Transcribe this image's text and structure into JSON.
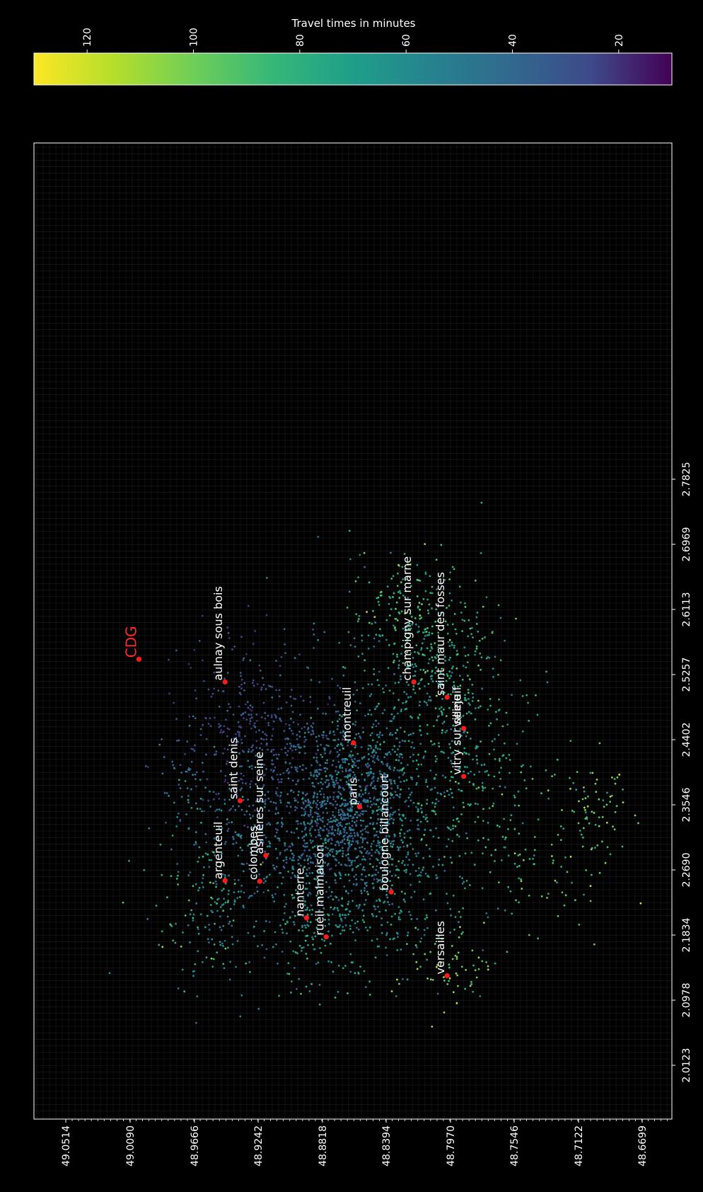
{
  "chart_data": {
    "type": "scatter",
    "background_color": "#000000",
    "foreground_color": "#ffffff",
    "grid": true,
    "orientation": "rotated-90-clockwise",
    "colorbar": {
      "label": "Travel times in minutes",
      "colormap": "viridis",
      "range": [
        10,
        130
      ],
      "ticks": [
        "120",
        "100",
        "80",
        "60",
        "40",
        "20"
      ],
      "tick_values": [
        120,
        100,
        80,
        60,
        40,
        20
      ],
      "reversed": true,
      "position": "top"
    },
    "x_axis": {
      "label": "",
      "ticks": [
        "49.0514",
        "49.0090",
        "48.9666",
        "48.9242",
        "48.8818",
        "48.8394",
        "48.7970",
        "48.7546",
        "48.7122",
        "48.6699"
      ],
      "range": [
        49.0514,
        48.6699
      ],
      "quantity": "latitude"
    },
    "y_axis": {
      "label": "",
      "ticks": [
        "2.0123",
        "2.0978",
        "2.1834",
        "2.2690",
        "2.3546",
        "2.4402",
        "2.5257",
        "2.6113",
        "2.6969",
        "2.7825"
      ],
      "range": [
        1.95,
        2.8
      ],
      "quantity": "longitude"
    },
    "places": [
      {
        "name": "CDG",
        "lat": 49.003,
        "lon": 2.546,
        "highlight": true
      },
      {
        "name": "aulnay sous bois",
        "lat": 48.946,
        "lon": 2.516
      },
      {
        "name": "saint denis",
        "lat": 48.936,
        "lon": 2.36
      },
      {
        "name": "argenteuil",
        "lat": 48.946,
        "lon": 2.255
      },
      {
        "name": "colombes",
        "lat": 48.923,
        "lon": 2.254
      },
      {
        "name": "asnieres sur seine",
        "lat": 48.919,
        "lon": 2.288
      },
      {
        "name": "nanterre",
        "lat": 48.892,
        "lon": 2.206
      },
      {
        "name": "rueil malmaison",
        "lat": 48.879,
        "lon": 2.181
      },
      {
        "name": "montreuil",
        "lat": 48.861,
        "lon": 2.436
      },
      {
        "name": "paris",
        "lat": 48.857,
        "lon": 2.352
      },
      {
        "name": "boulogne billancourt",
        "lat": 48.836,
        "lon": 2.24
      },
      {
        "name": "champigny sur marne",
        "lat": 48.821,
        "lon": 2.516
      },
      {
        "name": "saint maur des fosses",
        "lat": 48.799,
        "lon": 2.496
      },
      {
        "name": "vitry sur seine",
        "lat": 48.788,
        "lon": 2.392
      },
      {
        "name": "villejuif",
        "lat": 48.788,
        "lon": 2.455
      },
      {
        "name": "versailles",
        "lat": 48.799,
        "lon": 2.13
      }
    ],
    "point_clusters": [
      {
        "lat": 48.865,
        "lon": 2.345,
        "spread_lat": 0.022,
        "spread_lon": 0.055,
        "count": 900,
        "time": 52,
        "spread_time": 8
      },
      {
        "lat": 48.905,
        "lon": 2.4,
        "spread_lat": 0.03,
        "spread_lon": 0.09,
        "count": 350,
        "time": 45,
        "spread_time": 8
      },
      {
        "lat": 48.935,
        "lon": 2.45,
        "spread_lat": 0.02,
        "spread_lon": 0.07,
        "count": 220,
        "time": 35,
        "spread_time": 7
      },
      {
        "lat": 48.93,
        "lon": 2.28,
        "spread_lat": 0.028,
        "spread_lon": 0.07,
        "count": 260,
        "time": 62,
        "spread_time": 10
      },
      {
        "lat": 48.88,
        "lon": 2.2,
        "spread_lat": 0.02,
        "spread_lon": 0.05,
        "count": 180,
        "time": 75,
        "spread_time": 10
      },
      {
        "lat": 48.83,
        "lon": 2.45,
        "spread_lat": 0.03,
        "spread_lon": 0.1,
        "count": 450,
        "time": 70,
        "spread_time": 10
      },
      {
        "lat": 48.84,
        "lon": 2.25,
        "spread_lat": 0.025,
        "spread_lon": 0.06,
        "count": 260,
        "time": 70,
        "spread_time": 10
      },
      {
        "lat": 48.785,
        "lon": 2.38,
        "spread_lat": 0.025,
        "spread_lon": 0.08,
        "count": 260,
        "time": 82,
        "spread_time": 10
      },
      {
        "lat": 48.8,
        "lon": 2.55,
        "spread_lat": 0.02,
        "spread_lon": 0.05,
        "count": 180,
        "time": 85,
        "spread_time": 10
      },
      {
        "lat": 48.83,
        "lon": 2.62,
        "spread_lat": 0.015,
        "spread_lon": 0.03,
        "count": 90,
        "time": 90,
        "spread_time": 12
      },
      {
        "lat": 48.8,
        "lon": 2.14,
        "spread_lat": 0.015,
        "spread_lon": 0.03,
        "count": 60,
        "time": 105,
        "spread_time": 10
      },
      {
        "lat": 48.73,
        "lon": 2.27,
        "spread_lat": 0.02,
        "spread_lon": 0.05,
        "count": 60,
        "time": 90,
        "spread_time": 12
      },
      {
        "lat": 48.7,
        "lon": 2.35,
        "spread_lat": 0.012,
        "spread_lon": 0.035,
        "count": 70,
        "time": 100,
        "spread_time": 12
      },
      {
        "lat": 48.96,
        "lon": 2.22,
        "spread_lat": 0.02,
        "spread_lon": 0.05,
        "count": 80,
        "time": 85,
        "spread_time": 12
      },
      {
        "lat": 48.975,
        "lon": 2.38,
        "spread_lat": 0.01,
        "spread_lon": 0.04,
        "count": 50,
        "time": 55,
        "spread_time": 10
      }
    ]
  }
}
